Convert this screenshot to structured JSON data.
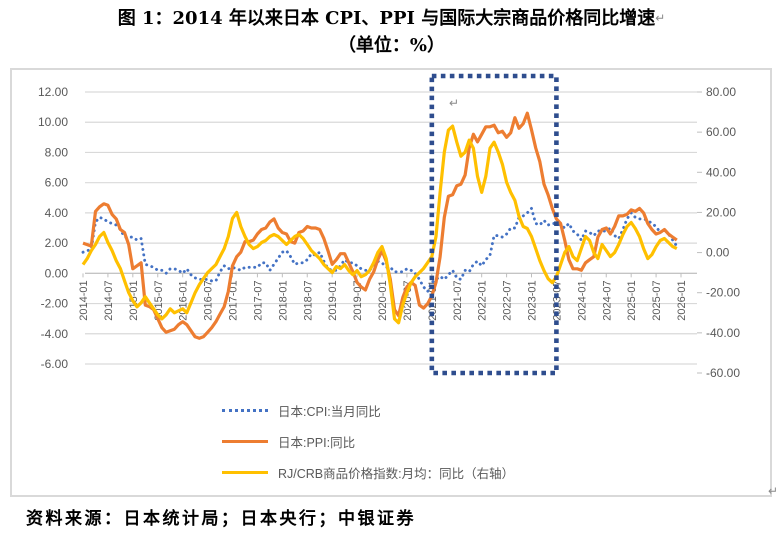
{
  "title": {
    "line1": "图 1：2014 年以来日本 CPI、PPI 与国际大宗商品价格同比增速",
    "line2": "（单位：%）",
    "linebreak_mark": "↵"
  },
  "source_note": "资料来源：日本统计局；日本央行；中银证券",
  "chart_data": {
    "type": "line",
    "x_start": "2014-01",
    "x_frequency": "monthly",
    "x_tick_labels": [
      "2014-01",
      "2014-07",
      "2015-01",
      "2015-07",
      "2016-01",
      "2016-07",
      "2017-01",
      "2017-07",
      "2018-01",
      "2018-07",
      "2019-01",
      "2019-07",
      "2020-01",
      "2020-07",
      "2021-01",
      "2021-07",
      "2022-01",
      "2022-07",
      "2023-01",
      "2023-07",
      "2024-01",
      "2024-07",
      "2025-01",
      "2025-07",
      "2026-01"
    ],
    "grid": true,
    "legend_position": "bottom-left",
    "left_axis": {
      "min": -6,
      "max": 12,
      "step": 2,
      "tick_labels": [
        "12.00",
        "10.00",
        "8.00",
        "6.00",
        "4.00",
        "2.00",
        "0.00",
        "-2.00",
        "-4.00",
        "-6.00"
      ],
      "tick_values": [
        12,
        10,
        8,
        6,
        4,
        2,
        0,
        -2,
        -4,
        -6
      ]
    },
    "right_axis": {
      "min": -60,
      "max": 80,
      "step": 20,
      "tick_labels": [
        "80.00",
        "60.00",
        "40.00",
        "20.00",
        "0.00",
        "-20.00",
        "-40.00",
        "-60.00"
      ],
      "tick_values": [
        80,
        60,
        40,
        20,
        0,
        -20,
        -40,
        -60
      ]
    },
    "highlight_box": {
      "from": "2021-01",
      "to": "2023-07",
      "color": "#2e4d8e"
    },
    "colors": {
      "grid": "#d9d9d9",
      "axis_text": "#595959",
      "zero_axis": "#bfbfbf"
    },
    "series": [
      {
        "name": "日本:CPI:当月同比",
        "axis": "left",
        "style": "dotted",
        "color": "#4472c4",
        "values": [
          1.4,
          1.5,
          1.6,
          3.4,
          3.7,
          3.6,
          3.4,
          3.3,
          3.2,
          2.9,
          2.4,
          2.4,
          2.4,
          2.2,
          2.3,
          0.6,
          0.5,
          0.4,
          0.2,
          0.2,
          0.0,
          0.3,
          0.3,
          0.2,
          0.0,
          0.3,
          -0.1,
          -0.3,
          -0.4,
          -0.4,
          -0.4,
          -0.5,
          -0.5,
          0.1,
          0.5,
          0.3,
          0.4,
          0.3,
          0.2,
          0.4,
          0.4,
          0.4,
          0.4,
          0.7,
          0.7,
          0.2,
          0.6,
          1.0,
          1.4,
          1.5,
          1.1,
          0.6,
          0.7,
          0.7,
          0.9,
          1.3,
          1.2,
          1.4,
          0.8,
          0.3,
          0.2,
          0.2,
          0.5,
          0.9,
          0.7,
          0.7,
          0.5,
          0.3,
          0.2,
          0.2,
          0.5,
          0.8,
          0.7,
          0.4,
          0.4,
          0.1,
          0.1,
          0.1,
          0.3,
          0.2,
          0.0,
          -0.4,
          -0.9,
          -1.2,
          -0.6,
          -0.4,
          -0.2,
          -0.4,
          -0.1,
          0.2,
          -0.3,
          -0.4,
          0.2,
          0.1,
          0.6,
          0.8,
          0.5,
          0.9,
          1.2,
          2.5,
          2.5,
          2.4,
          2.6,
          3.0,
          3.0,
          3.7,
          3.8,
          4.0,
          4.3,
          3.3,
          3.2,
          3.5,
          3.2,
          3.3,
          3.3,
          3.2,
          3.0,
          3.3,
          2.8,
          2.6,
          2.2,
          2.8,
          2.7,
          2.5,
          2.8,
          2.8,
          2.8,
          3.0,
          2.5,
          2.3,
          2.9,
          3.6,
          4.0,
          3.7,
          3.6,
          3.6,
          3.5,
          3.3,
          3.1,
          2.7,
          2.9,
          2.6,
          2.2,
          1.8
        ]
      },
      {
        "name": "日本:PPI:同比",
        "axis": "left",
        "style": "solid",
        "color": "#ed7d31",
        "values": [
          2.0,
          1.9,
          1.8,
          4.1,
          4.4,
          4.6,
          4.5,
          3.9,
          3.6,
          2.9,
          2.7,
          1.9,
          0.3,
          0.5,
          0.7,
          -2.1,
          -2.2,
          -2.4,
          -3.0,
          -3.6,
          -3.9,
          -3.8,
          -3.7,
          -3.4,
          -3.2,
          -3.4,
          -3.8,
          -4.2,
          -4.3,
          -4.2,
          -3.9,
          -3.6,
          -3.2,
          -2.7,
          -2.2,
          -1.2,
          0.5,
          1.1,
          1.4,
          2.1,
          2.1,
          2.2,
          2.6,
          2.9,
          3.0,
          3.4,
          3.6,
          3.0,
          2.7,
          2.6,
          2.1,
          2.0,
          2.7,
          2.8,
          3.1,
          3.0,
          3.0,
          2.9,
          2.3,
          1.5,
          0.6,
          0.9,
          1.3,
          1.3,
          0.7,
          0.1,
          -0.6,
          -0.9,
          -1.1,
          -0.4,
          0.1,
          0.9,
          1.5,
          0.8,
          -0.4,
          -2.4,
          -2.8,
          -1.6,
          -0.9,
          -0.6,
          -0.8,
          -2.1,
          -2.3,
          -2.0,
          -1.5,
          -0.6,
          1.1,
          3.7,
          5.1,
          5.2,
          5.8,
          5.9,
          6.5,
          8.3,
          9.2,
          8.7,
          9.2,
          9.7,
          9.7,
          9.8,
          9.3,
          9.4,
          9.0,
          9.3,
          10.3,
          9.6,
          9.9,
          10.6,
          9.5,
          8.3,
          7.4,
          5.9,
          5.2,
          4.3,
          3.6,
          3.3,
          2.2,
          0.9,
          0.3,
          0.3,
          0.2,
          0.7,
          0.9,
          1.1,
          2.4,
          2.9,
          3.0,
          2.6,
          3.1,
          3.8,
          3.8,
          3.9,
          4.2,
          4.1,
          4.3,
          4.0,
          3.3,
          2.9,
          2.6,
          2.7,
          2.9,
          2.6,
          2.4,
          2.2
        ]
      },
      {
        "name": "RJ/CRB商品价格指数:月均：同比（右轴）",
        "axis": "right",
        "style": "solid",
        "color": "#ffc000",
        "values": [
          -6,
          -3,
          1,
          4,
          8,
          10,
          5,
          1,
          -4,
          -8,
          -14,
          -20,
          -24,
          -27,
          -25,
          -22,
          -25,
          -28,
          -31,
          -33,
          -31,
          -28,
          -30,
          -29,
          -28,
          -30,
          -25,
          -20,
          -16,
          -13,
          -10,
          -8,
          -6,
          -2,
          2,
          8,
          17,
          20,
          13,
          8,
          4,
          2,
          3,
          5,
          6,
          8,
          9,
          8,
          6,
          4,
          6,
          8,
          9,
          7,
          4,
          1,
          -1,
          -3,
          -6,
          -8,
          -10,
          -7,
          -8,
          -6,
          -9,
          -11,
          -9,
          -12,
          -11,
          -9,
          -5,
          0,
          3,
          -3,
          -16,
          -33,
          -35,
          -26,
          -20,
          -15,
          -12,
          -10,
          -8,
          -5,
          -2,
          8,
          30,
          50,
          61,
          63,
          55,
          48,
          50,
          56,
          52,
          38,
          30,
          38,
          52,
          55,
          50,
          44,
          35,
          30,
          26,
          18,
          13,
          12,
          8,
          2,
          -4,
          -9,
          -13,
          -15,
          -12,
          -6,
          0,
          3,
          -2,
          -4,
          2,
          8,
          6,
          0,
          -3,
          4,
          1,
          -2,
          0,
          4,
          9,
          13,
          15,
          12,
          8,
          2,
          -3,
          -1,
          3,
          6,
          7,
          5,
          3,
          2
        ]
      }
    ]
  }
}
